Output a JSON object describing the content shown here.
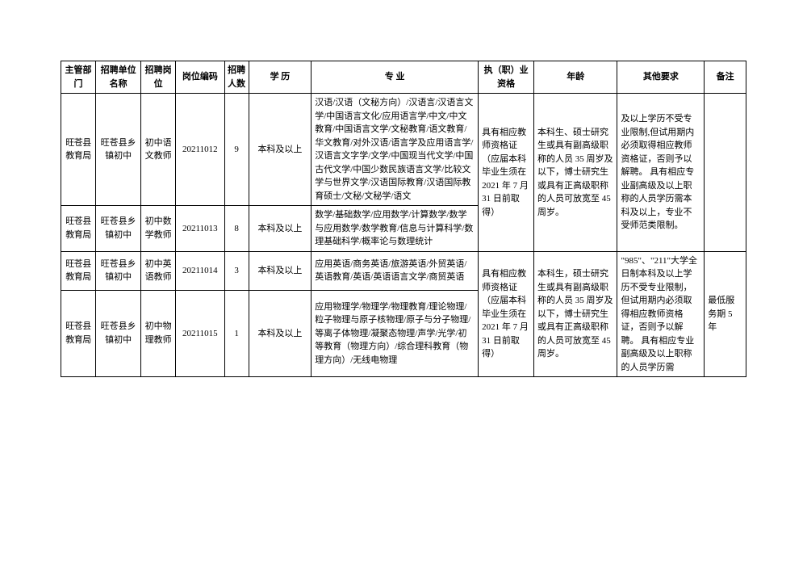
{
  "headers": {
    "dept": "主管部门",
    "unit": "招聘单位名称",
    "post": "招聘岗位",
    "code": "岗位编码",
    "num": "招聘人数",
    "edu": "学 历",
    "major": "专 业",
    "qual": "执（职）业资格",
    "age": "年龄",
    "other": "其他要求",
    "note": "备注"
  },
  "rows": [
    {
      "dept": "旺苍县教育局",
      "unit": "旺苍县乡镇初中",
      "post": "初中语文教师",
      "code": "20211012",
      "num": "9",
      "edu": "本科及以上",
      "major": "汉语/汉语（文秘方向）/汉语言/汉语言文学/中国语言文化/应用语言学/中文/中文教育/中国语言文学/文秘教育/语文教育/华文教育/对外汉语/语言学及应用语言学/汉语言文字学/文学/中国现当代文学/中国古代文学/中国少数民族语言文学/比较文学与世界文学/汉语国际教育/汉语国际教育硕士/文秘/文秘学/语文"
    },
    {
      "dept": "旺苍县教育局",
      "unit": "旺苍县乡镇初中",
      "post": "初中数学教师",
      "code": "20211013",
      "num": "8",
      "edu": "本科及以上",
      "major": "数学/基础数学/应用数学/计算数学/数学与应用数学/数学教育/信息与计算科学/数理基础科学/概率论与数理统计"
    },
    {
      "dept": "旺苍县教育局",
      "unit": "旺苍县乡镇初中",
      "post": "初中英语教师",
      "code": "20211014",
      "num": "3",
      "edu": "本科及以上",
      "major": "应用英语/商务英语/旅游英语/外贸英语/英语教育/英语/英语语言文学/商贸英语"
    },
    {
      "dept": "旺苍县教育局",
      "unit": "旺苍县乡镇初中",
      "post": "初中物理教师",
      "code": "20211015",
      "num": "1",
      "edu": "本科及以上",
      "major": "应用物理学/物理学/物理教育/理论物理/粒子物理与原子核物理/原子与分子物理/等离子体物理/凝聚态物理/声学/光学/初等教育（物理方向）/综合理科教育（物理方向）/无线电物理"
    }
  ],
  "merged": {
    "qual1": "具有相应教师资格证（应届本科毕业生须在 2021 年 7 月 31 日前取得）",
    "age1": "本科生、硕士研究生或具有副高级职称的人员 35 周岁及以下，博士研究生或具有正高级职称的人员可放宽至 45 周岁。",
    "other1": "及以上学历不受专业限制,但试用期内必须取得相应教师资格证，否则予以解聘。    具有相应专业副高级及以上职称的人员学历需本科及以上，专业不受师范类限制。",
    "qual2": "具有相应教师资格证（应届本科毕业生须在 2021 年 7 月 31 日前取得）",
    "age2": "本科生，硕士研究生或具有副高级职称的人员 35 周岁及以下，博士研究生或具有正高级职称的人员可放宽至 45 周岁。",
    "other2": "\"985\"、\"211\"大学全日制本科及以上学历不受专业限制，但试用期内必须取得相应教师资格证，否则予以解聘。    具有相应专业副高级及以上职称的人员学历需",
    "note2": "最低服务期 5 年"
  }
}
